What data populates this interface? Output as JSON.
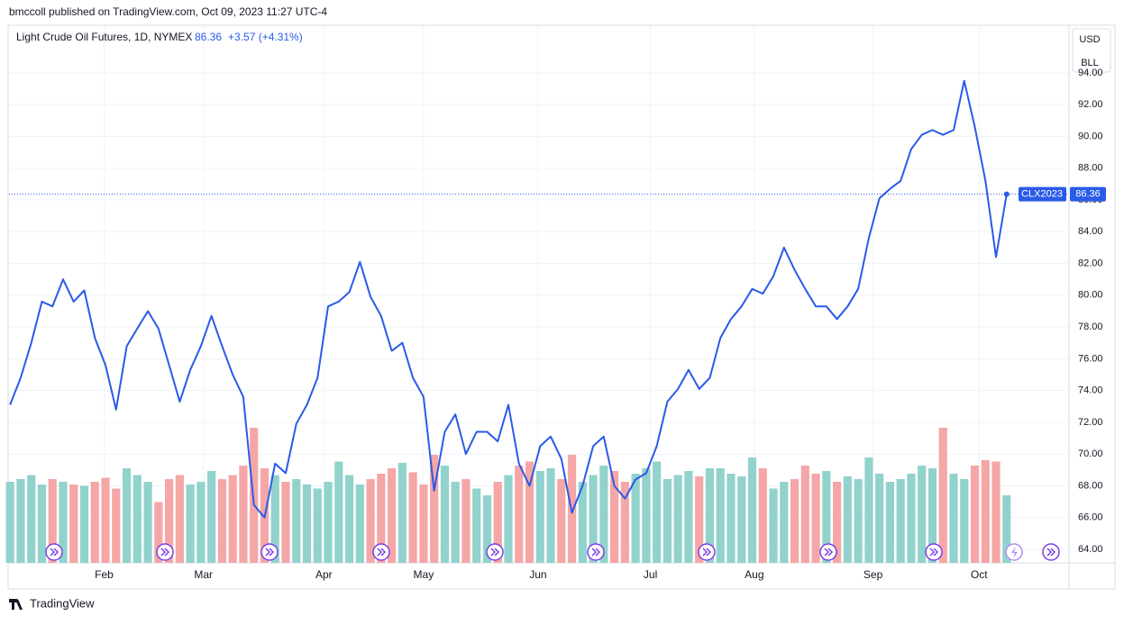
{
  "header": {
    "published": "bmccoll published on TradingView.com, Oct 09, 2023 11:27 UTC-4",
    "logo": "TradingView"
  },
  "chart_data": {
    "type": "line",
    "title": "Light Crude Oil Futures, 1D, NYMEX",
    "change": "+3.57 (+4.31%)",
    "symbol": "CLX2023",
    "buttons": [
      "USD",
      "BLL"
    ],
    "series": [
      {
        "name": "Light Crude Oil Futures",
        "color": "#2a5ae8",
        "values": [
          73.1,
          74.8,
          77.0,
          79.6,
          79.3,
          81.0,
          79.6,
          80.3,
          77.3,
          75.6,
          72.8,
          76.8,
          77.9,
          79.0,
          77.9,
          75.6,
          73.3,
          75.3,
          76.8,
          78.7,
          76.8,
          75.0,
          73.6,
          66.8,
          66.0,
          69.4,
          68.8,
          71.9,
          73.1,
          74.8,
          79.3,
          79.6,
          80.2,
          82.1,
          79.9,
          78.7,
          76.5,
          77.0,
          74.8,
          73.6,
          67.7,
          71.4,
          72.5,
          70.0,
          71.4,
          71.4,
          70.8,
          73.1,
          69.4,
          68.0,
          70.5,
          71.1,
          69.7,
          66.3,
          68.0,
          70.5,
          71.1,
          68.0,
          67.2,
          68.4,
          68.8,
          70.5,
          73.3,
          74.1,
          75.3,
          74.1,
          74.8,
          77.3,
          78.5,
          79.3,
          80.4,
          80.1,
          81.2,
          83.0,
          81.6,
          80.4,
          79.3,
          79.3,
          78.5,
          79.3,
          80.4,
          83.6,
          86.1,
          86.7,
          87.2,
          89.2,
          90.1,
          90.4,
          90.1,
          90.4,
          93.5,
          90.6,
          87.2,
          82.4,
          86.36
        ]
      }
    ],
    "volume": {
      "up_color": "#92d2cc",
      "down_color": "#f5a6a6",
      "vlim": [
        0,
        100
      ],
      "values": [
        60,
        62,
        65,
        58,
        62,
        60,
        58,
        57,
        60,
        63,
        55,
        70,
        65,
        60,
        45,
        62,
        65,
        58,
        60,
        68,
        62,
        65,
        72,
        100,
        70,
        65,
        60,
        62,
        58,
        55,
        60,
        75,
        65,
        58,
        62,
        66,
        70,
        74,
        67,
        58,
        80,
        72,
        60,
        62,
        55,
        50,
        60,
        65,
        72,
        75,
        68,
        70,
        62,
        80,
        60,
        65,
        72,
        68,
        60,
        66,
        70,
        75,
        62,
        65,
        68,
        64,
        70,
        70,
        66,
        64,
        78,
        70,
        55,
        60,
        62,
        72,
        66,
        68,
        60,
        64,
        62,
        78,
        66,
        60,
        62,
        66,
        72,
        70,
        100,
        66,
        62,
        72,
        76,
        75,
        50
      ]
    },
    "xlim": [
      -0.1,
      99.8
    ],
    "xticks": [
      {
        "value": 8.87,
        "label": "Feb"
      },
      {
        "value": 18.24,
        "label": "Mar"
      },
      {
        "value": 29.6,
        "label": "Apr"
      },
      {
        "value": 39.0,
        "label": "May"
      },
      {
        "value": 49.8,
        "label": "Jun"
      },
      {
        "value": 60.4,
        "label": "Jul"
      },
      {
        "value": 70.2,
        "label": "Aug"
      },
      {
        "value": 81.4,
        "label": "Sep"
      },
      {
        "value": 91.4,
        "label": "Oct"
      }
    ],
    "ylim": [
      63.15,
      97
    ],
    "yticks": [
      {
        "value": 64,
        "label": "64.00"
      },
      {
        "value": 66,
        "label": "66.00"
      },
      {
        "value": 68,
        "label": "68.00"
      },
      {
        "value": 70,
        "label": "70.00"
      },
      {
        "value": 72,
        "label": "72.00"
      },
      {
        "value": 74,
        "label": "74.00"
      },
      {
        "value": 76,
        "label": "76.00"
      },
      {
        "value": 78,
        "label": "78.00"
      },
      {
        "value": 80,
        "label": "80.00"
      },
      {
        "value": 82,
        "label": "82.00"
      },
      {
        "value": 84,
        "label": "84.00"
      },
      {
        "value": 86,
        "label": "86.00"
      },
      {
        "value": 88,
        "label": "88.00"
      },
      {
        "value": 90,
        "label": "90.00"
      },
      {
        "value": 92,
        "label": "92.00"
      },
      {
        "value": 94,
        "label": "94.00"
      }
    ],
    "grid": true
  }
}
